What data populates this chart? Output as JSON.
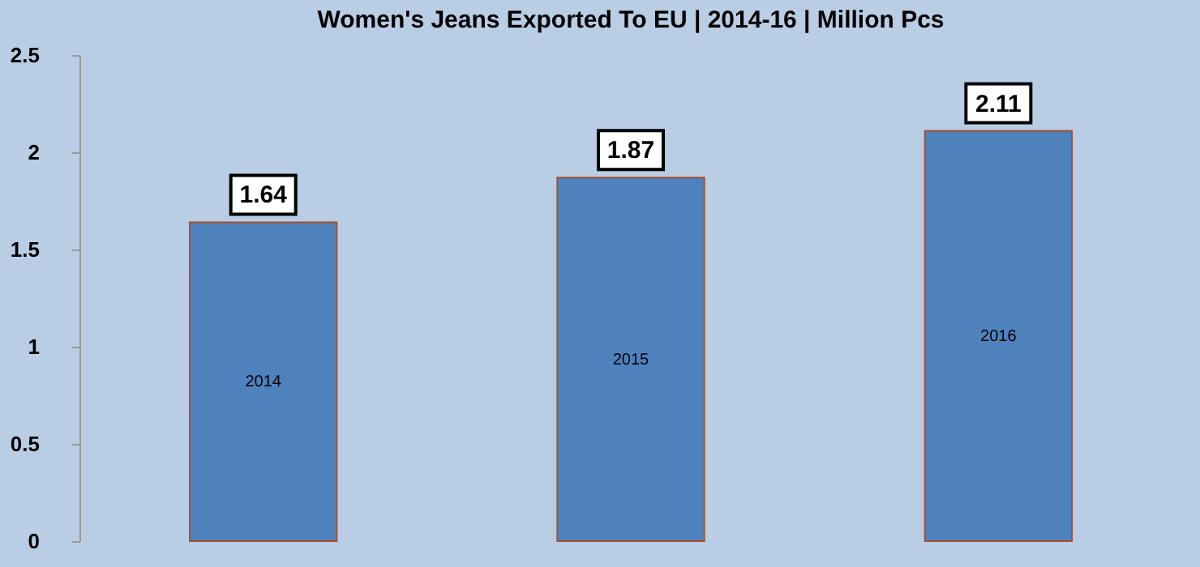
{
  "chart_data": {
    "type": "bar",
    "title": "Women's Jeans Exported To EU | 2014-16 | Million Pcs",
    "categories": [
      "2014",
      "2015",
      "2016"
    ],
    "values": [
      1.64,
      1.87,
      2.11
    ],
    "color": "#4f81bd",
    "ylim": [
      0,
      2.5
    ],
    "yticks": [
      0,
      0.5,
      1,
      1.5,
      2,
      2.5
    ],
    "data_labels": true,
    "grid": false
  }
}
